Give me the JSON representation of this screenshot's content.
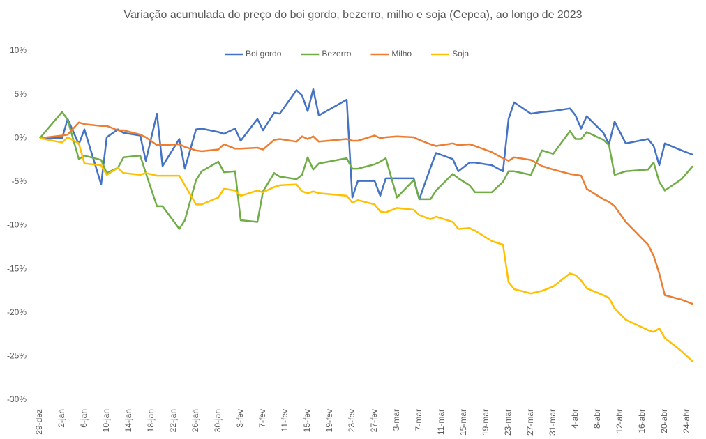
{
  "chart_data": {
    "type": "line",
    "title": "Variação acumulada do preço do boi gordo, bezerro, milho e soja (Cepea), ao longo de 2023",
    "x": [
      0,
      4,
      5,
      7,
      8,
      11,
      12,
      14,
      15,
      18,
      19,
      21,
      22,
      25,
      26,
      28,
      29,
      32,
      33,
      35,
      36,
      39,
      40,
      42,
      43,
      46,
      47,
      48,
      49,
      50,
      55,
      56,
      57,
      60,
      61,
      62,
      64,
      67,
      68,
      70,
      71,
      74,
      75,
      77,
      78,
      81,
      83,
      84,
      85,
      88,
      90,
      92,
      95,
      96,
      97,
      98,
      101,
      102,
      103,
      105,
      109,
      110,
      111,
      112,
      115,
      117
    ],
    "xlim": [
      0,
      117
    ],
    "xticks": [
      {
        "value": 0,
        "label": "29-dez"
      },
      {
        "value": 4,
        "label": "2-jan"
      },
      {
        "value": 8,
        "label": "6-jan"
      },
      {
        "value": 12,
        "label": "10-jan"
      },
      {
        "value": 16,
        "label": "14-jan"
      },
      {
        "value": 20,
        "label": "18-jan"
      },
      {
        "value": 24,
        "label": "22-jan"
      },
      {
        "value": 28,
        "label": "26-jan"
      },
      {
        "value": 32,
        "label": "30-jan"
      },
      {
        "value": 36,
        "label": "3-fev"
      },
      {
        "value": 40,
        "label": "7-fev"
      },
      {
        "value": 44,
        "label": "11-fev"
      },
      {
        "value": 48,
        "label": "15-fev"
      },
      {
        "value": 52,
        "label": "19-fev"
      },
      {
        "value": 56,
        "label": "23-fev"
      },
      {
        "value": 60,
        "label": "27-fev"
      },
      {
        "value": 64,
        "label": "3-mar"
      },
      {
        "value": 68,
        "label": "7-mar"
      },
      {
        "value": 72,
        "label": "11-mar"
      },
      {
        "value": 76,
        "label": "15-mar"
      },
      {
        "value": 80,
        "label": "19-mar"
      },
      {
        "value": 84,
        "label": "23-mar"
      },
      {
        "value": 88,
        "label": "27-mar"
      },
      {
        "value": 92,
        "label": "31-mar"
      },
      {
        "value": 96,
        "label": "4-abr"
      },
      {
        "value": 100,
        "label": "8-abr"
      },
      {
        "value": 104,
        "label": "12-abr"
      },
      {
        "value": 108,
        "label": "16-abr"
      },
      {
        "value": 112,
        "label": "20-abr"
      },
      {
        "value": 116,
        "label": "24-abr"
      }
    ],
    "ylim": [
      -30,
      10
    ],
    "yticks": [
      {
        "value": 10,
        "label": "10%"
      },
      {
        "value": 5,
        "label": "5%"
      },
      {
        "value": 0,
        "label": "0%"
      },
      {
        "value": -5,
        "label": "-5%"
      },
      {
        "value": -10,
        "label": "-10%"
      },
      {
        "value": -15,
        "label": "-15%"
      },
      {
        "value": -20,
        "label": "-20%"
      },
      {
        "value": -25,
        "label": "-25%"
      },
      {
        "value": -30,
        "label": "-30%"
      }
    ],
    "grid": false,
    "legend": "top",
    "series": [
      {
        "name": "Boi gordo",
        "color": "#4472c4",
        "values": [
          0,
          0,
          2.2,
          -0.7,
          1.0,
          -5.3,
          0.1,
          1.0,
          0.6,
          0.3,
          -2.6,
          2.8,
          -3.2,
          -0.1,
          -3.5,
          1.0,
          1.1,
          0.7,
          0.5,
          1.1,
          -0.3,
          2.2,
          0.9,
          2.9,
          2.8,
          5.5,
          4.9,
          3.1,
          5.6,
          2.6,
          4.4,
          -6.8,
          -4.9,
          -4.9,
          -6.6,
          -4.6,
          -4.6,
          -4.6,
          -7.0,
          -3.4,
          -1.7,
          -2.4,
          -3.8,
          -2.8,
          -2.8,
          -3.1,
          -3.8,
          2.2,
          4.1,
          2.8,
          3.0,
          3.1,
          3.4,
          2.6,
          1.1,
          2.5,
          0.6,
          -0.7,
          1.9,
          -0.6,
          -0.1,
          -0.9,
          -3.1,
          -0.6,
          -1.4,
          -1.9
        ]
      },
      {
        "name": "Bezerro",
        "color": "#70ad47",
        "values": [
          0,
          3.0,
          2.1,
          -2.4,
          -2.0,
          -2.5,
          -4.0,
          -3.4,
          -2.2,
          -2.0,
          -4.0,
          -7.8,
          -7.8,
          -10.4,
          -9.4,
          -4.8,
          -3.8,
          -2.7,
          -3.9,
          -3.8,
          -9.4,
          -9.6,
          -6.1,
          -4.0,
          -4.4,
          -4.7,
          -4.2,
          -2.2,
          -3.6,
          -2.9,
          -2.3,
          -3.5,
          -3.5,
          -3.0,
          -2.7,
          -2.3,
          -6.8,
          -4.8,
          -7.0,
          -7.0,
          -6.0,
          -4.1,
          -4.6,
          -5.4,
          -6.2,
          -6.2,
          -5.0,
          -3.8,
          -3.8,
          -4.2,
          -1.4,
          -1.8,
          0.8,
          -0.1,
          -0.1,
          0.7,
          -0.2,
          -0.8,
          -4.2,
          -3.8,
          -3.6,
          -2.8,
          -5.0,
          -6.0,
          -4.7,
          -3.2
        ]
      },
      {
        "name": "Milho",
        "color": "#ed7d31",
        "values": [
          0,
          0.3,
          0.4,
          1.8,
          1.6,
          1.4,
          1.4,
          0.9,
          0.9,
          0.4,
          0.1,
          -0.8,
          -0.8,
          -0.7,
          -1.0,
          -1.4,
          -1.5,
          -1.3,
          -0.7,
          -1.2,
          -1.2,
          -1.1,
          -1.3,
          -0.2,
          -0.1,
          -0.4,
          0.2,
          -0.1,
          0.2,
          -0.4,
          -0.1,
          -0.3,
          -0.3,
          0.3,
          0,
          0.1,
          0.2,
          0.1,
          -0.2,
          -0.7,
          -0.9,
          -0.6,
          -0.8,
          -0.7,
          -0.9,
          -1.6,
          -2.3,
          -2.6,
          -2.2,
          -2.5,
          -3.2,
          -3.6,
          -4.1,
          -4.2,
          -4.3,
          -5.8,
          -7.0,
          -7.3,
          -7.8,
          -9.6,
          -12.2,
          -13.5,
          -15.5,
          -18.0,
          -18.5,
          -19.0
        ]
      },
      {
        "name": "Soja",
        "color": "#ffc000",
        "values": [
          0,
          -0.5,
          0.1,
          -0.6,
          -2.9,
          -3.1,
          -4.2,
          -3.4,
          -4.0,
          -4.2,
          -4.0,
          -4.3,
          -4.3,
          -4.3,
          -5.4,
          -7.6,
          -7.6,
          -6.8,
          -5.8,
          -6.0,
          -6.6,
          -6.0,
          -6.2,
          -5.6,
          -5.4,
          -5.3,
          -6.1,
          -6.3,
          -6.1,
          -6.3,
          -6.6,
          -7.4,
          -7.1,
          -7.6,
          -8.4,
          -8.5,
          -8.0,
          -8.2,
          -8.8,
          -9.3,
          -9.0,
          -9.6,
          -10.4,
          -10.3,
          -10.6,
          -11.8,
          -12.2,
          -16.5,
          -17.3,
          -17.8,
          -17.5,
          -17.0,
          -15.5,
          -15.7,
          -16.3,
          -17.2,
          -18.0,
          -18.3,
          -19.5,
          -20.8,
          -22.0,
          -22.2,
          -21.8,
          -22.9,
          -24.4,
          -25.6
        ]
      }
    ]
  }
}
